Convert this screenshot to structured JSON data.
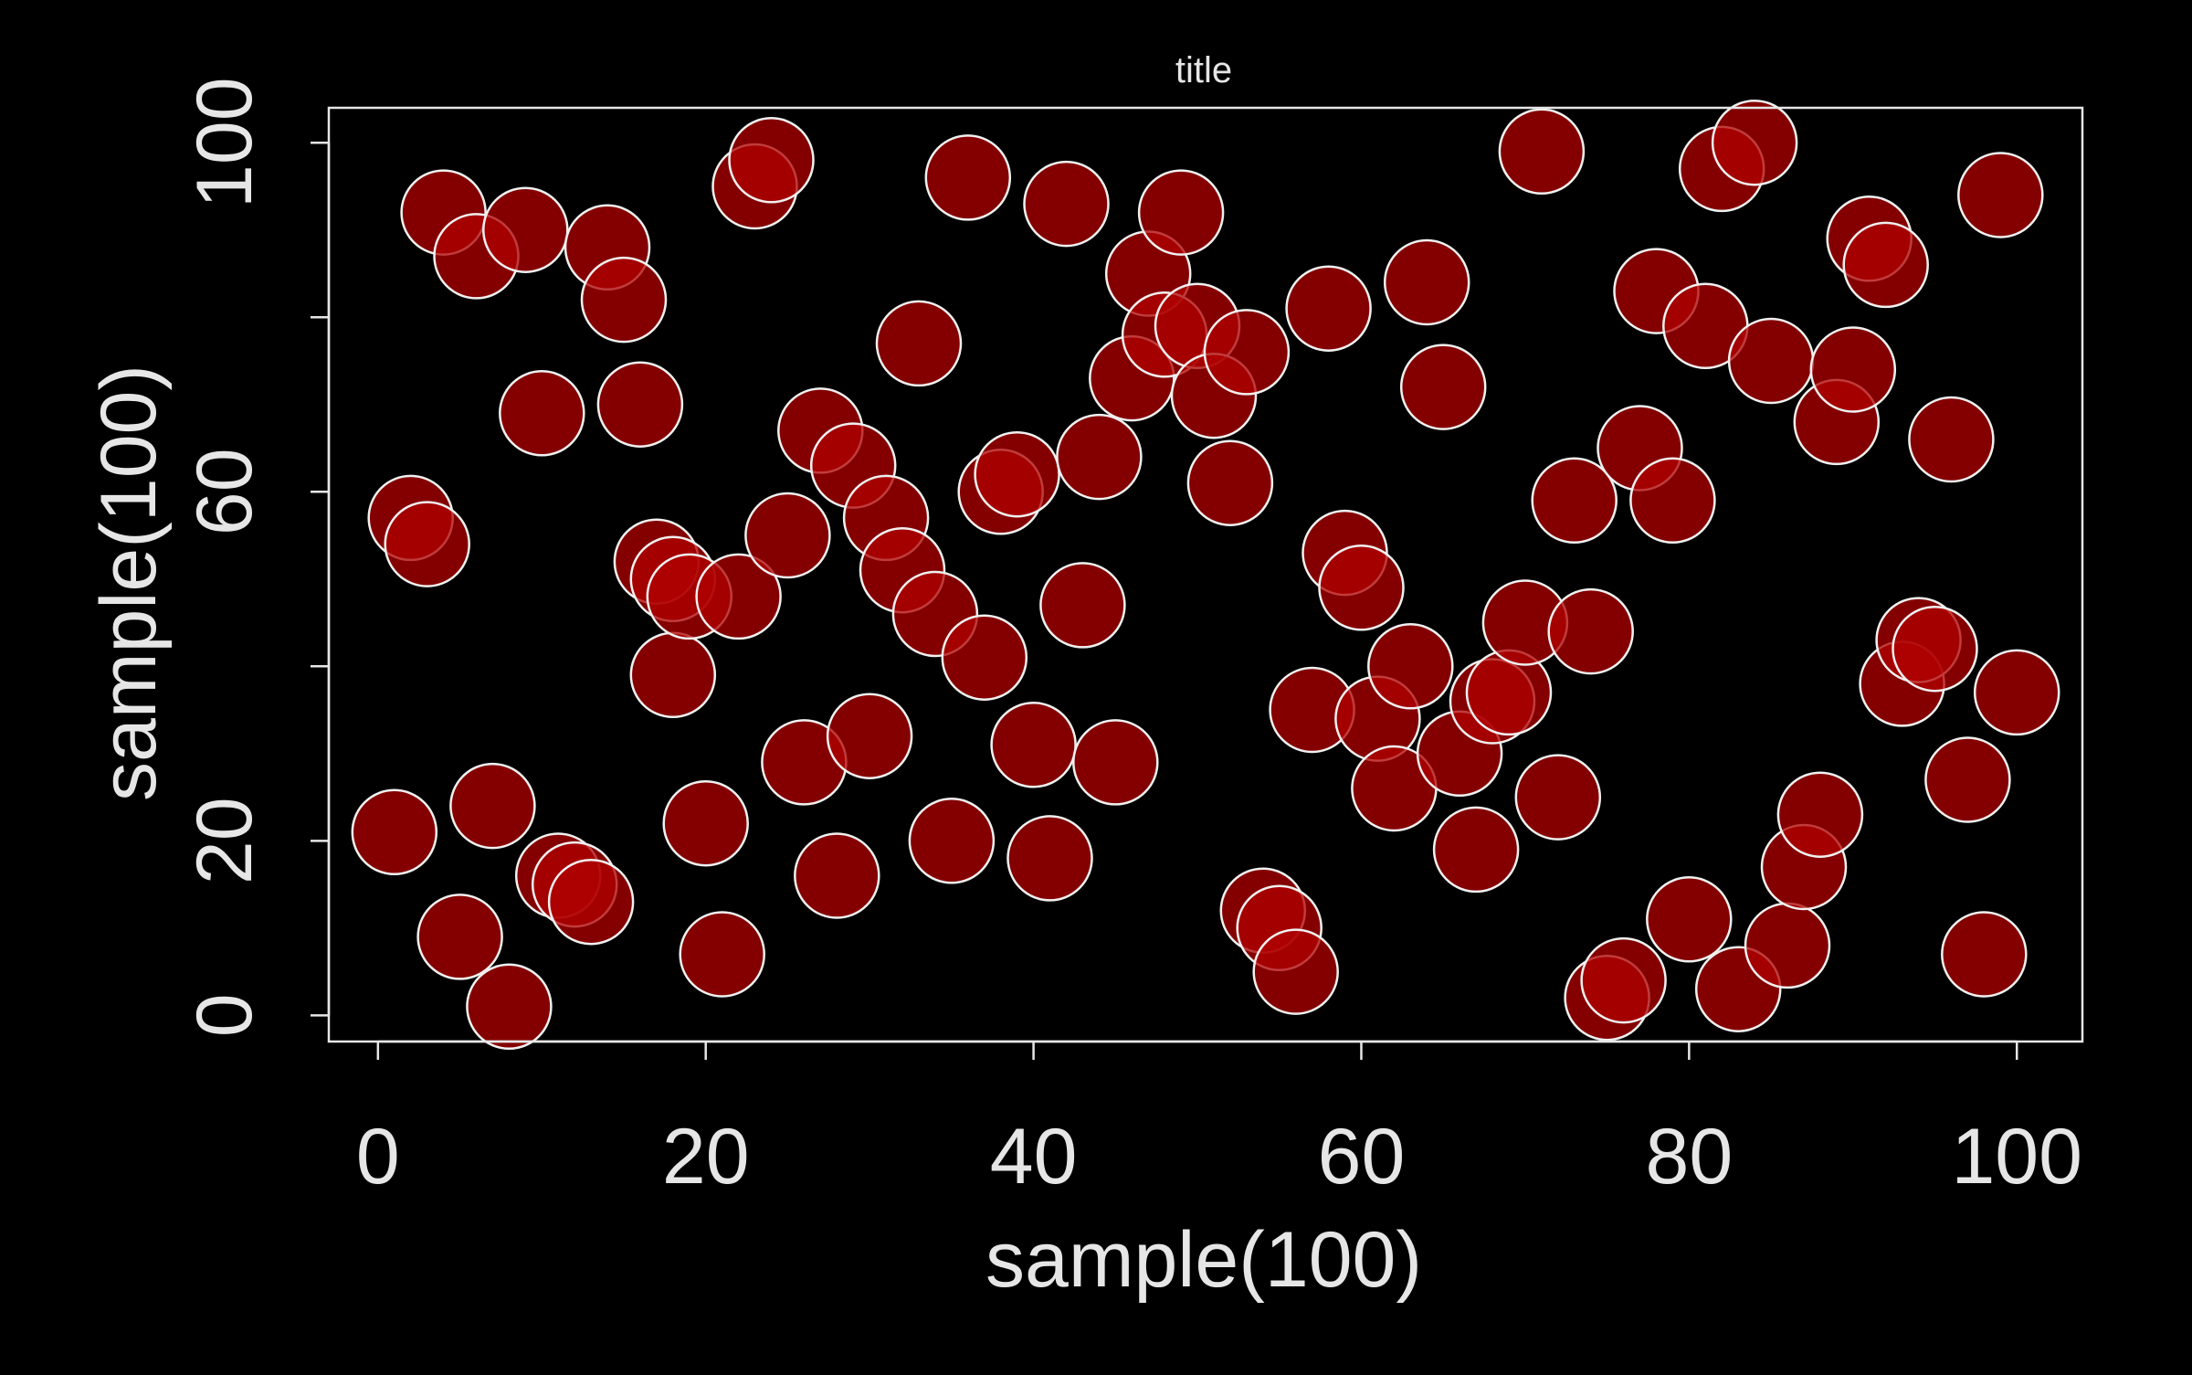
{
  "chart_data": {
    "type": "scatter",
    "title": "title",
    "xlabel": "sample(100)",
    "ylabel": "sample(100)",
    "xlim": [
      -3,
      104
    ],
    "ylim": [
      -3,
      104
    ],
    "xticks": [
      "0",
      "20",
      "40",
      "60",
      "80",
      "100"
    ],
    "xtick_values": [
      0,
      20,
      40,
      60,
      80,
      100
    ],
    "yticks": [
      "0",
      "20",
      "60",
      "100"
    ],
    "ytick_values": [
      0,
      20,
      60,
      100
    ],
    "yminor_ticks": [
      40,
      80
    ],
    "grid": false,
    "legend": "none",
    "background_color": "#000000",
    "foreground_color": "#e6e6e6",
    "point_fill": "#b00000",
    "point_stroke": "#f0f0f0",
    "point_opacity": 0.75,
    "x": [
      1,
      2,
      3,
      4,
      5,
      6,
      7,
      8,
      9,
      10,
      11,
      12,
      13,
      14,
      15,
      16,
      17,
      18,
      18,
      19,
      20,
      21,
      22,
      23,
      24,
      25,
      26,
      27,
      28,
      29,
      30,
      31,
      32,
      33,
      34,
      35,
      36,
      37,
      38,
      39,
      40,
      41,
      42,
      43,
      44,
      45,
      46,
      47,
      48,
      49,
      50,
      51,
      52,
      53,
      54,
      55,
      56,
      57,
      58,
      59,
      60,
      61,
      62,
      63,
      64,
      65,
      66,
      67,
      68,
      69,
      70,
      71,
      72,
      73,
      74,
      75,
      76,
      77,
      78,
      79,
      80,
      81,
      82,
      83,
      84,
      85,
      86,
      87,
      88,
      89,
      90,
      91,
      92,
      93,
      94,
      95,
      96,
      97,
      98,
      99,
      100
    ],
    "y": [
      21,
      57,
      54,
      92,
      9,
      87,
      24,
      1,
      90,
      69,
      16,
      15,
      13,
      88,
      82,
      70,
      52,
      39,
      50,
      48,
      22,
      7,
      48,
      95,
      98,
      55,
      29,
      67,
      16,
      63,
      32,
      57,
      51,
      77,
      46,
      20,
      96,
      41,
      60,
      62,
      31,
      18,
      93,
      47,
      64,
      29,
      73,
      85,
      78,
      92,
      79,
      71,
      61,
      76,
      12,
      10,
      5,
      35,
      81,
      53,
      49,
      34,
      26,
      40,
      84,
      72,
      30,
      19,
      36,
      37,
      45,
      99,
      25,
      59,
      44,
      2,
      4,
      65,
      83,
      59,
      11,
      79,
      97,
      3,
      100,
      75,
      8,
      17,
      23,
      68,
      74,
      89,
      86,
      38,
      43,
      42,
      66,
      27,
      7,
      94,
      37
    ]
  }
}
